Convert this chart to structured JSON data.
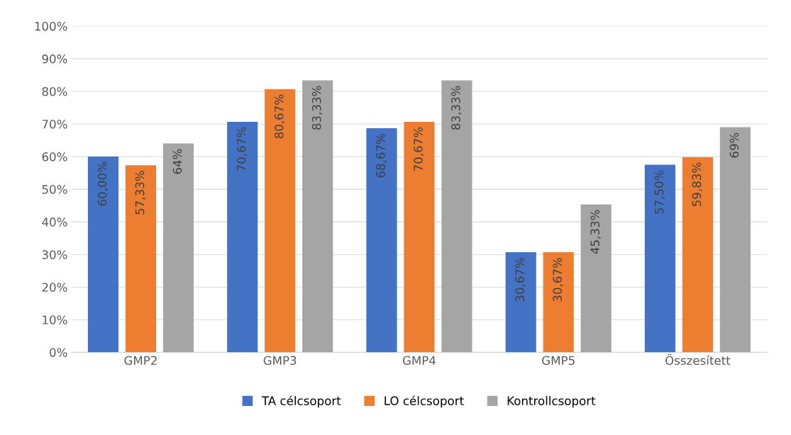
{
  "chart_data": {
    "type": "bar",
    "categories": [
      "GMP2",
      "GMP3",
      "GMP4",
      "GMP5",
      "Összesített"
    ],
    "series": [
      {
        "name": "TA célcsoport",
        "color": "#4472c4",
        "values": [
          60.0,
          70.67,
          68.67,
          30.67,
          57.5
        ],
        "value_labels": [
          "60,00%",
          "70,67%",
          "68,67%",
          "30,67%",
          "57,50%"
        ]
      },
      {
        "name": "LO célcsoport",
        "color": "#ed7d31",
        "values": [
          57.33,
          80.67,
          70.67,
          30.67,
          59.83
        ],
        "value_labels": [
          "57,33%",
          "80,67%",
          "70,67%",
          "30,67%",
          "59,83%"
        ]
      },
      {
        "name": "Kontrollcsoport",
        "color": "#a5a5a5",
        "values": [
          64,
          83.33,
          83.33,
          45.33,
          69
        ],
        "value_labels": [
          "64%",
          "83,33%",
          "83,33%",
          "45,33%",
          "69%"
        ]
      }
    ],
    "ylim": [
      0,
      100
    ],
    "yticks": [
      {
        "value": 0,
        "label": "0%"
      },
      {
        "value": 10,
        "label": "10%"
      },
      {
        "value": 20,
        "label": "20%"
      },
      {
        "value": 30,
        "label": "30%"
      },
      {
        "value": 40,
        "label": "40%"
      },
      {
        "value": 50,
        "label": "50%"
      },
      {
        "value": 60,
        "label": "60%"
      },
      {
        "value": 70,
        "label": "70%"
      },
      {
        "value": 80,
        "label": "80%"
      },
      {
        "value": 90,
        "label": "90%"
      },
      {
        "value": 100,
        "label": "100%"
      }
    ],
    "grid": "y",
    "legend": "bottom"
  }
}
